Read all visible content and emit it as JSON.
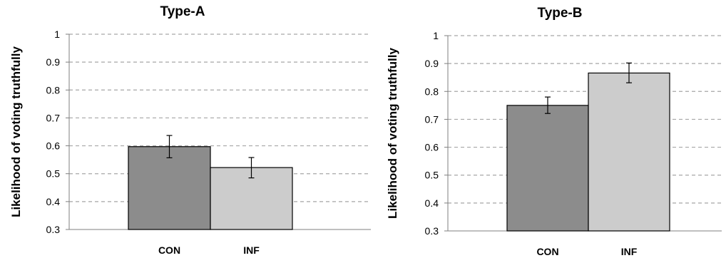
{
  "chart_data": [
    {
      "type": "bar",
      "title": "Type-A",
      "xlabel": "",
      "ylabel": "Likelihood of voting truthfully",
      "categories": [
        "CON",
        "INF"
      ],
      "values": [
        0.597,
        0.522
      ],
      "error_low": [
        0.557,
        0.485
      ],
      "error_high": [
        0.637,
        0.558
      ],
      "ylim": [
        0.3,
        1
      ],
      "yticks": [
        "0.3",
        "0.4",
        "0.5",
        "0.6",
        "0.7",
        "0.8",
        "0.9",
        "1"
      ],
      "grid": true,
      "legend": "none",
      "colors": [
        "#8c8c8c",
        "#cccccc"
      ]
    },
    {
      "type": "bar",
      "title": "Type-B",
      "xlabel": "",
      "ylabel": "Likelihood of voting truthfully",
      "categories": [
        "CON",
        "INF"
      ],
      "values": [
        0.75,
        0.866
      ],
      "error_low": [
        0.721,
        0.831
      ],
      "error_high": [
        0.78,
        0.902
      ],
      "ylim": [
        0.3,
        1
      ],
      "yticks": [
        "0.3",
        "0.4",
        "0.5",
        "0.6",
        "0.7",
        "0.8",
        "0.9",
        "1"
      ],
      "grid": true,
      "legend": "none",
      "colors": [
        "#8c8c8c",
        "#cccccc"
      ]
    }
  ]
}
